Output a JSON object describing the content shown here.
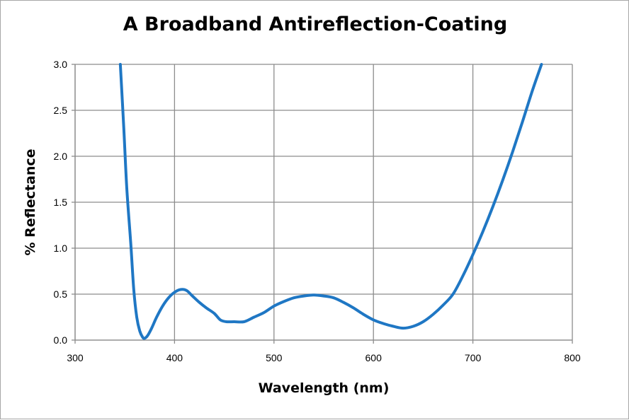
{
  "chart_data": {
    "type": "line",
    "title": "A Broadband Antireflection-Coating",
    "xlabel": "Wavelength (nm)",
    "ylabel": "% Reflectance",
    "xlim": [
      300,
      800
    ],
    "ylim": [
      0,
      3.0
    ],
    "xticks": [
      "300",
      "400",
      "500",
      "600",
      "700",
      "800"
    ],
    "yticks": [
      "0.0",
      "0.5",
      "1.0",
      "1.5",
      "2.0",
      "2.5",
      "3.0"
    ],
    "grid": true,
    "line_color": "#1f77c4",
    "series": [
      {
        "x": [
          345.5,
          349,
          352,
          356,
          359,
          362,
          365,
          368,
          370,
          373,
          377,
          382,
          388,
          394,
          400,
          406,
          412,
          418,
          425,
          432,
          440,
          446,
          452,
          460,
          470,
          480,
          490,
          500,
          510,
          520,
          530,
          540,
          550,
          560,
          570,
          580,
          590,
          600,
          610,
          620,
          630,
          640,
          650,
          660,
          670,
          680,
          690,
          700,
          710,
          720,
          730,
          740,
          750,
          760,
          769
        ],
        "y": [
          3.0,
          2.3,
          1.65,
          1.05,
          0.55,
          0.25,
          0.1,
          0.03,
          0.02,
          0.05,
          0.13,
          0.25,
          0.37,
          0.46,
          0.52,
          0.55,
          0.54,
          0.48,
          0.41,
          0.35,
          0.29,
          0.22,
          0.2,
          0.2,
          0.2,
          0.25,
          0.3,
          0.37,
          0.42,
          0.46,
          0.48,
          0.49,
          0.48,
          0.46,
          0.41,
          0.35,
          0.28,
          0.22,
          0.18,
          0.15,
          0.13,
          0.15,
          0.2,
          0.28,
          0.38,
          0.5,
          0.7,
          0.93,
          1.18,
          1.45,
          1.74,
          2.05,
          2.38,
          2.72,
          3.0
        ]
      }
    ]
  }
}
